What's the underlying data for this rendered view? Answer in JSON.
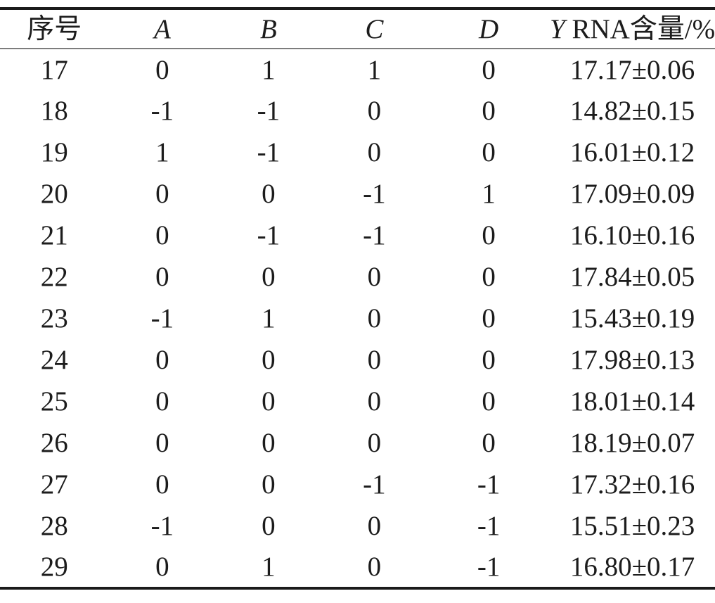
{
  "table": {
    "column_keys": [
      "no",
      "A",
      "B",
      "C",
      "D",
      "Y"
    ],
    "headers": {
      "no": "序号",
      "A": "A",
      "B": "B",
      "C": "C",
      "D": "D",
      "Y_italic": "Y",
      "Y_rest": " RNA含量/%"
    },
    "rows": [
      [
        "17",
        "0",
        "1",
        "1",
        "0",
        "17.17±0.06"
      ],
      [
        "18",
        "-1",
        "-1",
        "0",
        "0",
        "14.82±0.15"
      ],
      [
        "19",
        "1",
        "-1",
        "0",
        "0",
        "16.01±0.12"
      ],
      [
        "20",
        "0",
        "0",
        "-1",
        "1",
        "17.09±0.09"
      ],
      [
        "21",
        "0",
        "-1",
        "-1",
        "0",
        "16.10±0.16"
      ],
      [
        "22",
        "0",
        "0",
        "0",
        "0",
        "17.84±0.05"
      ],
      [
        "23",
        "-1",
        "1",
        "0",
        "0",
        "15.43±0.19"
      ],
      [
        "24",
        "0",
        "0",
        "0",
        "0",
        "17.98±0.13"
      ],
      [
        "25",
        "0",
        "0",
        "0",
        "0",
        "18.01±0.14"
      ],
      [
        "26",
        "0",
        "0",
        "0",
        "0",
        "18.19±0.07"
      ],
      [
        "27",
        "0",
        "0",
        "-1",
        "-1",
        "17.32±0.16"
      ],
      [
        "28",
        "-1",
        "0",
        "0",
        "-1",
        "15.51±0.23"
      ],
      [
        "29",
        "0",
        "1",
        "0",
        "-1",
        "16.80±0.17"
      ]
    ]
  },
  "colors": {
    "text": "#1c1c1c",
    "rule_heavy": "#1b1b1b",
    "rule_light": "#7d7d7d",
    "background": "#ffffff"
  }
}
